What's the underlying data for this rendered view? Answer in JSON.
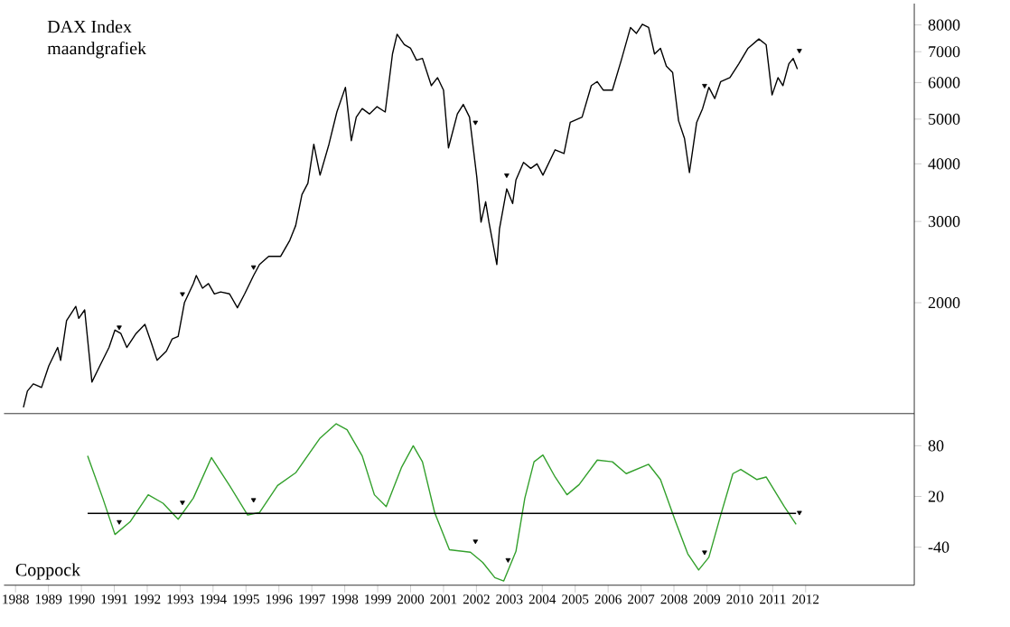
{
  "chart_data": [
    {
      "type": "line",
      "title": "DAX Index",
      "subtitle": "maandgrafiek",
      "log": "y",
      "tick_labels": "y",
      "xlim": [
        1987.65,
        2015.3
      ],
      "ylim": [
        1150,
        8900
      ],
      "yticks": [
        2000,
        3000,
        4000,
        5000,
        6000,
        7000,
        8000
      ],
      "series": [
        {
          "color": "#000000",
          "x": [
            1988.24,
            1988.36,
            1988.54,
            1988.79,
            1989.01,
            1989.28,
            1989.37,
            1989.55,
            1989.83,
            1989.92,
            1990.1,
            1990.32,
            1990.56,
            1990.84,
            1991.02,
            1991.2,
            1991.38,
            1991.66,
            1991.93,
            1992.12,
            1992.3,
            1992.58,
            1992.76,
            1992.94,
            1993.13,
            1993.4,
            1993.49,
            1993.68,
            1993.86,
            1994.04,
            1994.23,
            1994.5,
            1994.74,
            1994.96,
            1995.23,
            1995.41,
            1995.69,
            1996.05,
            1996.33,
            1996.51,
            1996.7,
            1996.88,
            1997.06,
            1997.25,
            1997.52,
            1997.76,
            1998.02,
            1998.2,
            1998.35,
            1998.53,
            1998.75,
            1998.98,
            1999.23,
            1999.45,
            1999.59,
            1999.81,
            2000.0,
            2000.18,
            2000.36,
            2000.63,
            2000.82,
            2001.0,
            2001.15,
            2001.42,
            2001.6,
            2001.79,
            2002.01,
            2002.14,
            2002.28,
            2002.38,
            2002.62,
            2002.7,
            2002.92,
            2003.1,
            2003.2,
            2003.43,
            2003.65,
            2003.84,
            2004.02,
            2004.39,
            2004.66,
            2004.85,
            2005.21,
            2005.49,
            2005.67,
            2005.85,
            2006.13,
            2006.4,
            2006.68,
            2006.86,
            2007.04,
            2007.23,
            2007.41,
            2007.59,
            2007.77,
            2007.96,
            2008.14,
            2008.32,
            2008.47,
            2008.69,
            2008.87,
            2009.06,
            2009.24,
            2009.42,
            2009.7,
            2009.97,
            2010.25,
            2010.58,
            2010.8,
            2010.98,
            2011.16,
            2011.31,
            2011.49,
            2011.62,
            2011.75
          ],
          "values": [
            1186,
            1287,
            1334,
            1310,
            1459,
            1600,
            1500,
            1830,
            1964,
            1850,
            1930,
            1346,
            1459,
            1600,
            1745,
            1715,
            1600,
            1715,
            1795,
            1640,
            1500,
            1570,
            1670,
            1690,
            2000,
            2200,
            2290,
            2150,
            2200,
            2090,
            2110,
            2090,
            1950,
            2090,
            2290,
            2420,
            2520,
            2520,
            2730,
            2940,
            3430,
            3630,
            4410,
            3780,
            4410,
            5180,
            5860,
            4490,
            5050,
            5270,
            5130,
            5320,
            5180,
            6920,
            7640,
            7250,
            7120,
            6710,
            6770,
            5910,
            6150,
            5780,
            4330,
            5130,
            5380,
            5050,
            3750,
            2990,
            3310,
            2990,
            2420,
            2890,
            3530,
            3280,
            3690,
            4030,
            3910,
            4000,
            3780,
            4290,
            4210,
            4920,
            5050,
            5910,
            6030,
            5780,
            5780,
            6710,
            7900,
            7670,
            8030,
            7900,
            6920,
            7120,
            6510,
            6310,
            4960,
            4540,
            3830,
            4920,
            5270,
            5860,
            5540,
            6030,
            6150,
            6590,
            7120,
            7460,
            7250,
            5640,
            6150,
            5910,
            6590,
            6770,
            6420
          ]
        },
        {
          "type": "scatter",
          "marker": "triangle",
          "color": "#000000",
          "x": [
            1991.15,
            1993.07,
            1995.23,
            2001.97,
            2002.92,
            2008.93,
            2011.81
          ],
          "values": [
            1770,
            2090,
            2390,
            4920,
            3780,
            5910,
            7040
          ]
        }
      ]
    },
    {
      "type": "line",
      "title": "Coppock",
      "xlim": [
        1987.65,
        2015.3
      ],
      "ylim": [
        -85,
        118
      ],
      "yticks": [
        -40,
        20,
        80
      ],
      "xticks": [
        1988,
        1989,
        1990,
        1991,
        1992,
        1993,
        1994,
        1995,
        1996,
        1997,
        1998,
        1999,
        2000,
        2001,
        2002,
        2003,
        2004,
        2005,
        2006,
        2007,
        2008,
        2009,
        2010,
        2011,
        2012
      ],
      "ref_lines": [
        {
          "axis": "y",
          "value": 0,
          "color": "#000000"
        }
      ],
      "series": [
        {
          "color": "#33a02c",
          "x": [
            1990.19,
            1990.65,
            1991.02,
            1991.48,
            1992.03,
            1992.48,
            1992.94,
            1993.4,
            1993.95,
            1994.5,
            1995.05,
            1995.41,
            1995.96,
            1996.51,
            1997.25,
            1997.74,
            1998.07,
            1998.53,
            1998.9,
            1999.26,
            1999.72,
            2000.08,
            2000.36,
            2000.73,
            2001.18,
            2001.82,
            2002.19,
            2002.56,
            2002.83,
            2003.2,
            2003.47,
            2003.75,
            2004.02,
            2004.39,
            2004.75,
            2005.12,
            2005.67,
            2006.13,
            2006.55,
            2007.23,
            2007.59,
            2008.05,
            2008.42,
            2008.75,
            2009.06,
            2009.42,
            2009.79,
            2010.03,
            2010.52,
            2010.8,
            2011.35,
            2011.71
          ],
          "values": [
            68,
            18,
            -25,
            -10,
            22,
            12,
            -7,
            18,
            66,
            33,
            -2,
            1,
            33,
            48,
            89,
            106,
            99,
            68,
            22,
            8,
            54,
            80,
            61,
            1,
            -43,
            -46,
            -58,
            -76,
            -80,
            -45,
            18,
            61,
            69,
            43,
            22,
            34,
            63,
            61,
            47,
            58,
            40,
            -10,
            -48,
            -67,
            -52,
            -2,
            47,
            52,
            40,
            43,
            8,
            -13
          ]
        },
        {
          "type": "scatter",
          "marker": "triangle",
          "color": "#000000",
          "x": [
            1991.15,
            1993.07,
            1995.23,
            2001.97,
            2002.96,
            2008.93,
            2011.81
          ],
          "values": [
            -10,
            13,
            16,
            -33,
            -55,
            -46,
            1
          ]
        }
      ]
    }
  ]
}
